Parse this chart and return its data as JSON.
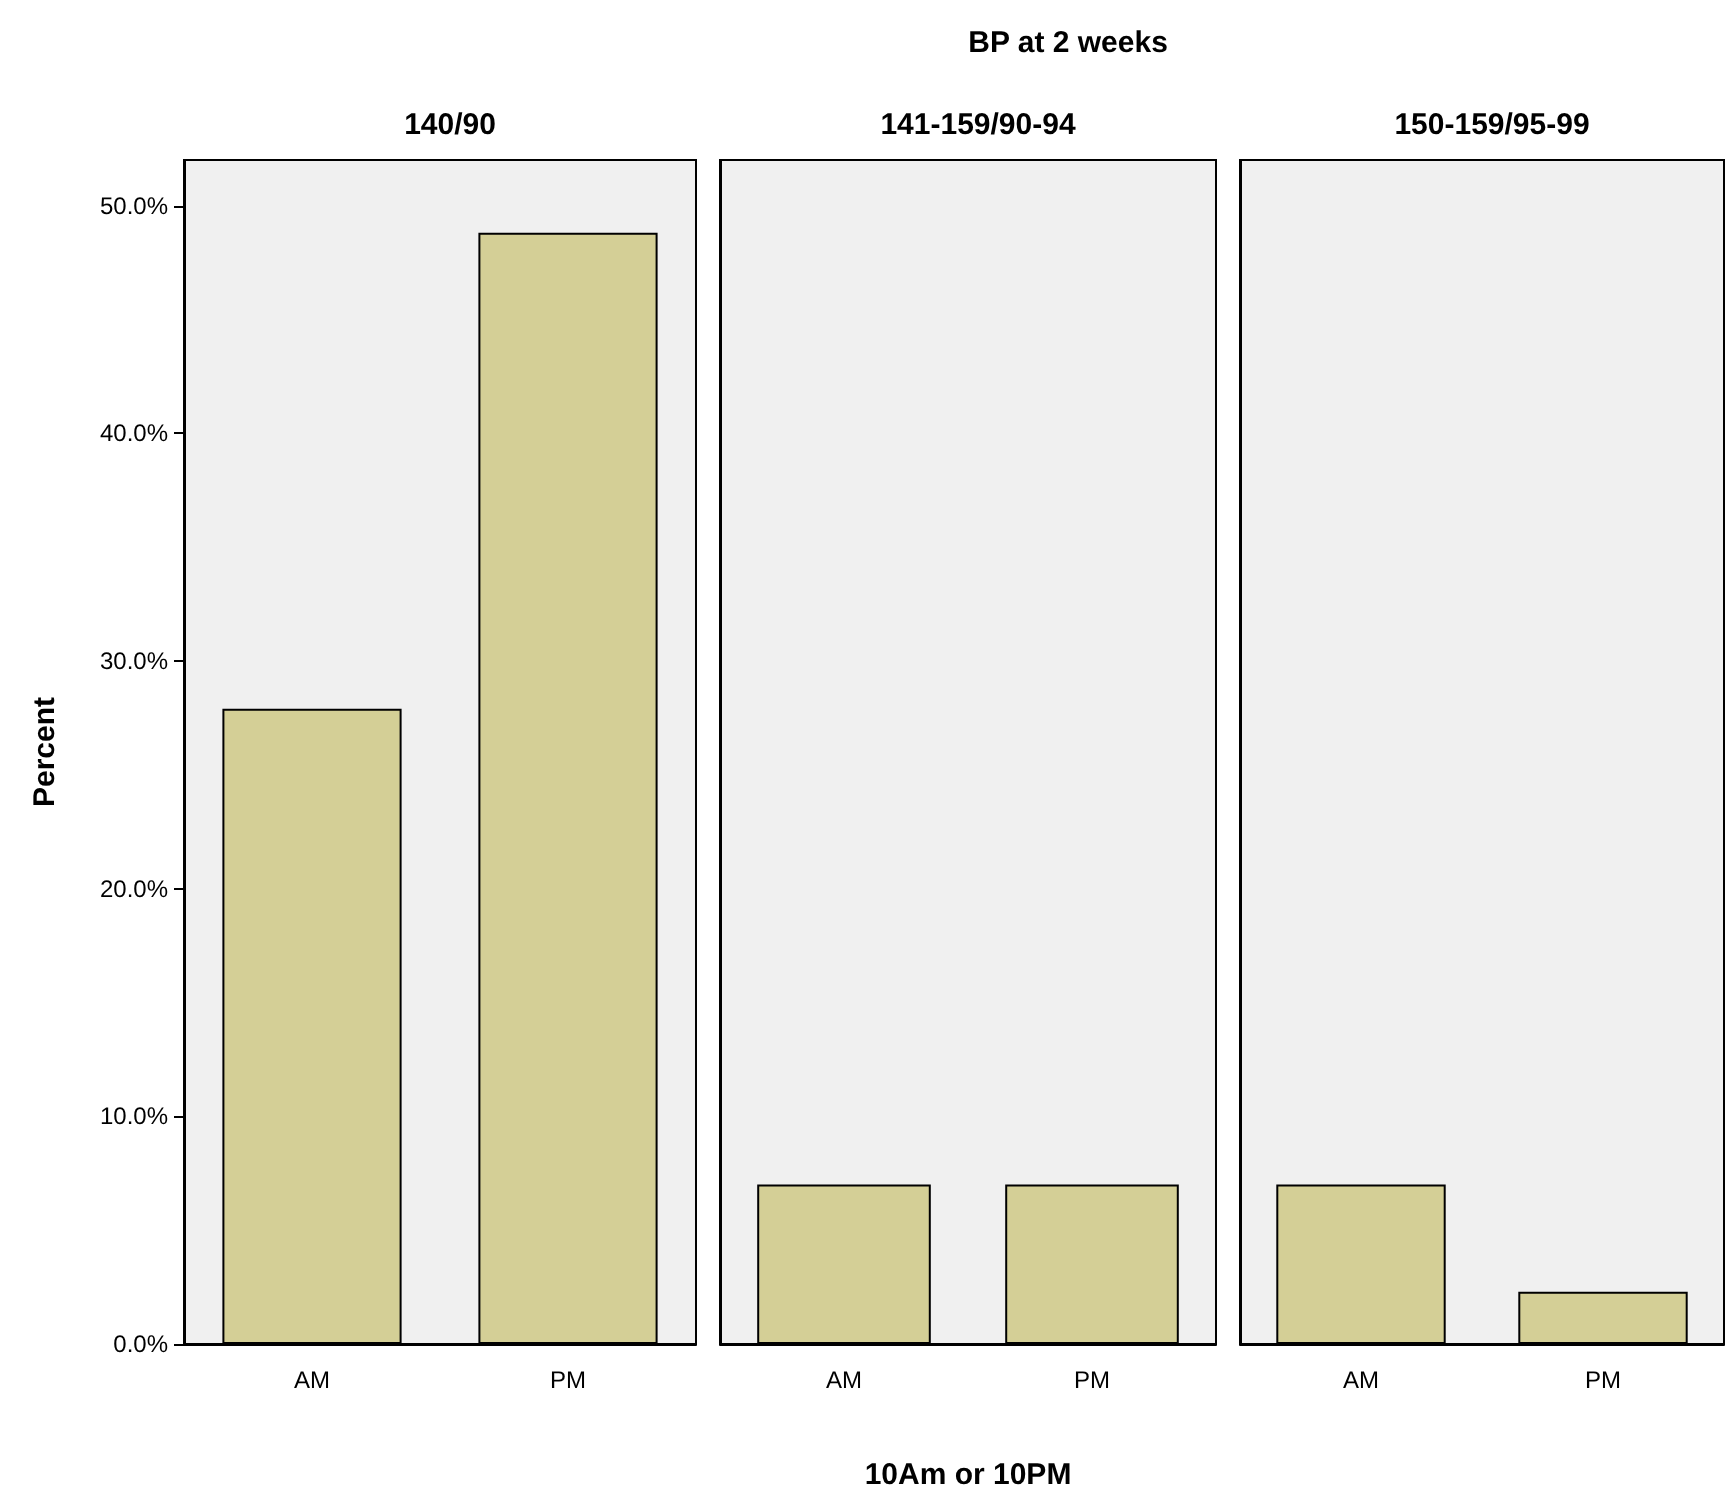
{
  "chart_data": [
    {
      "type": "bar",
      "title": "140/90",
      "ylabel": "Percent",
      "categories": [
        "AM",
        "PM"
      ],
      "values": [
        27.9,
        48.8
      ],
      "color": "#d4cf96",
      "ylim": [
        0,
        52
      ],
      "yticks": [
        {
          "value": 0,
          "label": "0.0%"
        },
        {
          "value": 10,
          "label": "10.0%"
        },
        {
          "value": 20,
          "label": "20.0%"
        },
        {
          "value": 30,
          "label": "30.0%"
        },
        {
          "value": 40,
          "label": "40.0%"
        },
        {
          "value": 50,
          "label": "50.0%"
        }
      ],
      "grid": false
    },
    {
      "type": "bar",
      "title": "141-159/90-94",
      "annotations": [
        "BP at 2 weeks"
      ],
      "xlabel": "10Am or 10PM",
      "categories": [
        "AM",
        "PM"
      ],
      "values": [
        7.0,
        7.0
      ],
      "color": "#d4cf96",
      "ylim": [
        0,
        52
      ],
      "tick_labels": "x",
      "grid": false
    },
    {
      "type": "bar",
      "title": "150-159/95-99",
      "categories": [
        "AM",
        "PM"
      ],
      "values": [
        7.0,
        2.3
      ],
      "color": "#d4cf96",
      "ylim": [
        0,
        52
      ],
      "tick_labels": "x",
      "grid": false
    }
  ]
}
